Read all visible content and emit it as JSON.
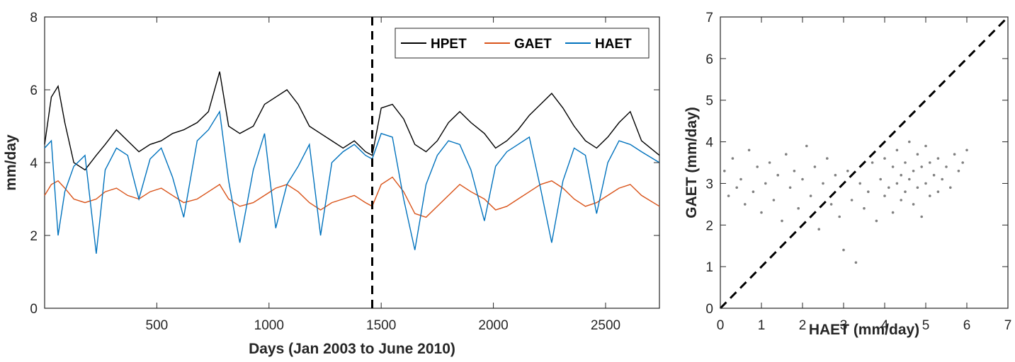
{
  "chart_data": [
    {
      "type": "line",
      "xlabel": "Days (Jan 2003 to June 2010)",
      "ylabel": "mm/day",
      "xlim": [
        0,
        2740
      ],
      "ylim": [
        0,
        8
      ],
      "xticks": [
        500,
        1000,
        1500,
        2000,
        2500
      ],
      "yticks": [
        0,
        2,
        4,
        6,
        8
      ],
      "grid": false,
      "legend": "top-right",
      "vline": {
        "x": 1460,
        "style": "dashed",
        "color": "#000000"
      },
      "series": [
        {
          "name": "HPET",
          "color": "#000000",
          "x": [
            0,
            30,
            60,
            90,
            130,
            180,
            230,
            270,
            320,
            370,
            420,
            470,
            520,
            570,
            620,
            680,
            730,
            780,
            820,
            870,
            930,
            980,
            1030,
            1080,
            1130,
            1180,
            1230,
            1280,
            1330,
            1380,
            1430,
            1460,
            1500,
            1550,
            1600,
            1650,
            1700,
            1750,
            1800,
            1850,
            1900,
            1960,
            2010,
            2060,
            2110,
            2160,
            2210,
            2260,
            2310,
            2360,
            2410,
            2460,
            2510,
            2560,
            2610,
            2660,
            2740
          ],
          "y": [
            4.5,
            5.8,
            6.1,
            5.1,
            4.0,
            3.8,
            4.2,
            4.5,
            4.9,
            4.6,
            4.3,
            4.5,
            4.6,
            4.8,
            4.9,
            5.1,
            5.4,
            6.5,
            5.0,
            4.8,
            5.0,
            5.6,
            5.8,
            6.0,
            5.6,
            5.0,
            4.8,
            4.6,
            4.4,
            4.6,
            4.3,
            4.2,
            5.5,
            5.6,
            5.2,
            4.5,
            4.3,
            4.6,
            5.1,
            5.4,
            5.1,
            4.8,
            4.4,
            4.6,
            4.9,
            5.3,
            5.6,
            5.9,
            5.5,
            5.0,
            4.6,
            4.4,
            4.7,
            5.1,
            5.4,
            4.6,
            4.2
          ]
        },
        {
          "name": "GAET",
          "color": "#d95319",
          "x": [
            0,
            30,
            60,
            90,
            130,
            180,
            230,
            270,
            320,
            370,
            420,
            470,
            520,
            570,
            620,
            680,
            730,
            780,
            820,
            870,
            930,
            980,
            1030,
            1080,
            1130,
            1180,
            1230,
            1280,
            1330,
            1380,
            1430,
            1460,
            1500,
            1550,
            1600,
            1650,
            1700,
            1750,
            1800,
            1850,
            1900,
            1960,
            2010,
            2060,
            2110,
            2160,
            2210,
            2260,
            2310,
            2360,
            2410,
            2460,
            2510,
            2560,
            2610,
            2660,
            2740
          ],
          "y": [
            3.1,
            3.4,
            3.5,
            3.3,
            3.0,
            2.9,
            3.0,
            3.2,
            3.3,
            3.1,
            3.0,
            3.2,
            3.3,
            3.1,
            2.9,
            3.0,
            3.2,
            3.4,
            3.0,
            2.8,
            2.9,
            3.1,
            3.3,
            3.4,
            3.2,
            2.9,
            2.7,
            2.9,
            3.0,
            3.1,
            2.9,
            2.8,
            3.4,
            3.6,
            3.2,
            2.6,
            2.5,
            2.8,
            3.1,
            3.4,
            3.2,
            3.0,
            2.7,
            2.8,
            3.0,
            3.2,
            3.4,
            3.5,
            3.3,
            3.0,
            2.8,
            2.9,
            3.1,
            3.3,
            3.4,
            3.1,
            2.8
          ]
        },
        {
          "name": "HAET",
          "color": "#0072bd",
          "x": [
            0,
            30,
            60,
            90,
            130,
            180,
            230,
            270,
            320,
            370,
            420,
            470,
            520,
            570,
            620,
            680,
            730,
            780,
            820,
            870,
            930,
            980,
            1030,
            1080,
            1130,
            1180,
            1230,
            1280,
            1330,
            1380,
            1430,
            1460,
            1500,
            1550,
            1600,
            1650,
            1700,
            1750,
            1800,
            1850,
            1900,
            1960,
            2010,
            2060,
            2110,
            2160,
            2210,
            2260,
            2310,
            2360,
            2410,
            2460,
            2510,
            2560,
            2610,
            2660,
            2740
          ],
          "y": [
            4.4,
            4.6,
            2.0,
            3.2,
            3.9,
            4.2,
            1.5,
            3.8,
            4.4,
            4.2,
            3.0,
            4.1,
            4.4,
            3.6,
            2.5,
            4.6,
            4.9,
            5.4,
            3.5,
            1.8,
            3.8,
            4.8,
            2.2,
            3.4,
            3.9,
            4.5,
            2.0,
            4.0,
            4.3,
            4.5,
            4.2,
            4.1,
            4.8,
            4.7,
            3.0,
            1.6,
            3.4,
            4.2,
            4.6,
            4.5,
            3.8,
            2.4,
            3.9,
            4.3,
            4.5,
            4.7,
            3.3,
            1.8,
            3.5,
            4.4,
            4.2,
            2.6,
            4.0,
            4.6,
            4.5,
            4.3,
            4.0
          ]
        }
      ]
    },
    {
      "type": "scatter",
      "xlabel": "HAET (mm/day)",
      "ylabel": "GAET (mm/day)",
      "xlim": [
        0,
        7
      ],
      "ylim": [
        0,
        7
      ],
      "xticks": [
        0,
        1,
        2,
        3,
        4,
        5,
        6,
        7
      ],
      "yticks": [
        0,
        1,
        2,
        3,
        4,
        5,
        6,
        7
      ],
      "grid": false,
      "reference_line": {
        "from": [
          0,
          0
        ],
        "to": [
          7,
          7
        ],
        "style": "dashed",
        "color": "#000000"
      },
      "series": [
        {
          "color": "#808080",
          "points": [
            [
              0.1,
              3.3
            ],
            [
              0.2,
              2.7
            ],
            [
              0.3,
              3.6
            ],
            [
              0.4,
              2.9
            ],
            [
              0.5,
              3.1
            ],
            [
              0.6,
              2.5
            ],
            [
              0.7,
              3.8
            ],
            [
              0.8,
              2.8
            ],
            [
              0.9,
              3.4
            ],
            [
              1.0,
              2.3
            ],
            [
              1.1,
              3.0
            ],
            [
              1.2,
              3.5
            ],
            [
              1.3,
              2.6
            ],
            [
              1.4,
              3.2
            ],
            [
              1.5,
              2.1
            ],
            [
              1.6,
              3.7
            ],
            [
              1.7,
              2.9
            ],
            [
              1.8,
              3.3
            ],
            [
              1.9,
              2.4
            ],
            [
              2.0,
              3.1
            ],
            [
              2.1,
              3.9
            ],
            [
              2.2,
              2.7
            ],
            [
              2.3,
              3.4
            ],
            [
              2.4,
              1.9
            ],
            [
              2.5,
              3.0
            ],
            [
              2.6,
              3.6
            ],
            [
              2.7,
              2.5
            ],
            [
              2.8,
              3.2
            ],
            [
              2.9,
              2.2
            ],
            [
              3.0,
              1.4
            ],
            [
              3.1,
              3.3
            ],
            [
              3.2,
              2.6
            ],
            [
              3.3,
              1.1
            ],
            [
              3.4,
              3.0
            ],
            [
              3.5,
              2.4
            ],
            [
              3.6,
              2.8
            ],
            [
              3.7,
              3.5
            ],
            [
              3.8,
              2.1
            ],
            [
              3.9,
              3.1
            ],
            [
              4.0,
              2.7
            ],
            [
              4.0,
              3.6
            ],
            [
              4.1,
              2.9
            ],
            [
              4.2,
              3.4
            ],
            [
              4.2,
              2.3
            ],
            [
              4.3,
              3.0
            ],
            [
              4.3,
              3.8
            ],
            [
              4.4,
              2.6
            ],
            [
              4.4,
              3.2
            ],
            [
              4.5,
              3.5
            ],
            [
              4.5,
              2.8
            ],
            [
              4.6,
              3.1
            ],
            [
              4.6,
              4.0
            ],
            [
              4.7,
              2.5
            ],
            [
              4.7,
              3.3
            ],
            [
              4.8,
              3.7
            ],
            [
              4.8,
              2.9
            ],
            [
              4.9,
              3.4
            ],
            [
              4.9,
              2.2
            ],
            [
              5.0,
              3.0
            ],
            [
              5.0,
              3.9
            ],
            [
              5.1,
              2.7
            ],
            [
              5.1,
              3.5
            ],
            [
              5.2,
              3.2
            ],
            [
              5.3,
              2.8
            ],
            [
              5.3,
              3.6
            ],
            [
              5.4,
              3.1
            ],
            [
              5.5,
              3.4
            ],
            [
              5.6,
              2.9
            ],
            [
              5.7,
              3.7
            ],
            [
              5.8,
              3.3
            ],
            [
              5.9,
              3.5
            ],
            [
              6.0,
              3.8
            ]
          ]
        }
      ]
    }
  ]
}
